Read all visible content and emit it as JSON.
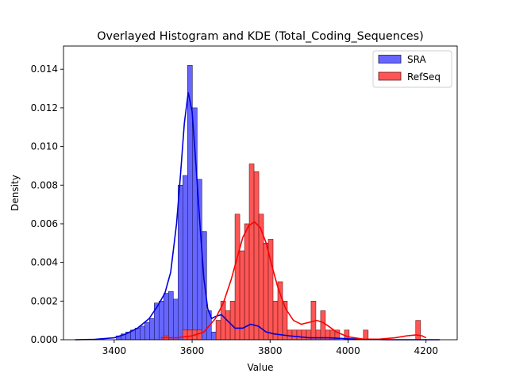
{
  "chart_data": {
    "type": "histogram",
    "title": "Overlayed Histogram and KDE (Total_Coding_Sequences)",
    "xlabel": "Value",
    "ylabel": "Density",
    "xlim": [
      3270,
      4280
    ],
    "ylim": [
      0,
      0.0152
    ],
    "xticks": [
      3400,
      3600,
      3800,
      4000,
      4200
    ],
    "yticks": [
      0.0,
      0.002,
      0.004,
      0.006,
      0.008,
      0.01,
      0.012,
      0.014
    ],
    "ytick_labels": [
      "0.000",
      "0.002",
      "0.004",
      "0.006",
      "0.008",
      "0.010",
      "0.012",
      "0.014"
    ],
    "legend": {
      "position": "top-right"
    },
    "series": [
      {
        "name": "SRA",
        "fill": "#6666ff",
        "edge": "#1a1a66",
        "line": "#0000dd",
        "bin_width": 12.2,
        "bins": [
          [
            3405.3,
            0.0002
          ],
          [
            3417.5,
            0.0003
          ],
          [
            3429.7,
            0.0004
          ],
          [
            3441.9,
            0.0005
          ],
          [
            3454.1,
            0.0006
          ],
          [
            3466.3,
            0.0007
          ],
          [
            3478.5,
            0.0009
          ],
          [
            3490.7,
            0.0011
          ],
          [
            3502.9,
            0.0019
          ],
          [
            3515.1,
            0.002
          ],
          [
            3527.3,
            0.0024
          ],
          [
            3539.5,
            0.0025
          ],
          [
            3551.7,
            0.0021
          ],
          [
            3563.9,
            0.008
          ],
          [
            3576.1,
            0.0085
          ],
          [
            3588.3,
            0.0142
          ],
          [
            3600.5,
            0.012
          ],
          [
            3612.7,
            0.0083
          ],
          [
            3624.9,
            0.0056
          ],
          [
            3637.1,
            0.0015
          ],
          [
            3649.3,
            0.0004
          ],
          [
            3661.5,
            0.001
          ],
          [
            3673.7,
            0.0006
          ],
          [
            3685.9,
            0.0005
          ],
          [
            3698.1,
            0.0004
          ],
          [
            3710.3,
            0.0004
          ],
          [
            3722.5,
            0.0005
          ],
          [
            3734.7,
            0.0005
          ],
          [
            3746.9,
            0.0006
          ],
          [
            3759.1,
            0.0006
          ],
          [
            3771.3,
            0.0005
          ],
          [
            3783.5,
            0.0005
          ],
          [
            3795.7,
            0.0004
          ],
          [
            3807.9,
            0.0003
          ],
          [
            3820.1,
            0.0003
          ],
          [
            3832.3,
            0.0002
          ],
          [
            3844.5,
            0.0002
          ],
          [
            3856.7,
            0.0001
          ],
          [
            3868.9,
            0.0001
          ],
          [
            3881.1,
            0.0001
          ]
        ],
        "kde_x": [
          3300,
          3350,
          3400,
          3430,
          3460,
          3490,
          3510,
          3530,
          3545,
          3560,
          3570,
          3580,
          3590,
          3600,
          3610,
          3620,
          3630,
          3640,
          3650,
          3660,
          3675,
          3690,
          3710,
          3730,
          3750,
          3770,
          3790,
          3810,
          3850,
          3900,
          3950,
          4000,
          4100,
          4235
        ],
        "kde_y": [
          0.0,
          2e-05,
          0.0001,
          0.0003,
          0.0006,
          0.0011,
          0.0017,
          0.0024,
          0.0035,
          0.006,
          0.0085,
          0.0112,
          0.0128,
          0.0118,
          0.009,
          0.006,
          0.0032,
          0.0016,
          0.0011,
          0.0012,
          0.0013,
          0.001,
          0.0006,
          0.0006,
          0.0008,
          0.0007,
          0.0004,
          0.0003,
          0.0002,
          0.0001,
          0.0001,
          5e-05,
          0.0,
          0.0
        ]
      },
      {
        "name": "RefSeq",
        "fill": "#ff5555",
        "edge": "#661a1a",
        "line": "#ff0000",
        "bin_width": 12.2,
        "bins": [
          [
            3527.3,
            0.0002
          ],
          [
            3575.8,
            0.0005
          ],
          [
            3588.0,
            0.0005
          ],
          [
            3600.2,
            0.0005
          ],
          [
            3612.4,
            0.0005
          ],
          [
            3661.2,
            0.001
          ],
          [
            3673.4,
            0.002
          ],
          [
            3685.6,
            0.0015
          ],
          [
            3697.8,
            0.002
          ],
          [
            3710.0,
            0.0065
          ],
          [
            3722.2,
            0.0046
          ],
          [
            3734.4,
            0.006
          ],
          [
            3746.6,
            0.0091
          ],
          [
            3758.8,
            0.0087
          ],
          [
            3771.0,
            0.0065
          ],
          [
            3783.2,
            0.005
          ],
          [
            3795.4,
            0.0052
          ],
          [
            3807.6,
            0.002
          ],
          [
            3819.8,
            0.003
          ],
          [
            3832.0,
            0.002
          ],
          [
            3844.2,
            0.0005
          ],
          [
            3856.4,
            0.0005
          ],
          [
            3868.6,
            0.0005
          ],
          [
            3880.8,
            0.0005
          ],
          [
            3893.0,
            0.0005
          ],
          [
            3905.2,
            0.002
          ],
          [
            3917.4,
            0.0005
          ],
          [
            3929.6,
            0.0015
          ],
          [
            3941.8,
            0.0005
          ],
          [
            3954.0,
            0.0005
          ],
          [
            3966.2,
            0.0005
          ],
          [
            3990.6,
            0.0005
          ],
          [
            4039.4,
            0.0005
          ],
          [
            4173.6,
            0.001
          ]
        ],
        "kde_x": [
          3520,
          3560,
          3600,
          3630,
          3660,
          3680,
          3700,
          3715,
          3730,
          3745,
          3760,
          3775,
          3790,
          3805,
          3820,
          3840,
          3860,
          3880,
          3900,
          3920,
          3935,
          3950,
          3970,
          4000,
          4040,
          4080,
          4120,
          4150,
          4175,
          4190,
          4200
        ],
        "kde_y": [
          0.0001,
          0.0001,
          0.0002,
          0.0004,
          0.0011,
          0.0019,
          0.0031,
          0.0042,
          0.0053,
          0.0059,
          0.0061,
          0.0058,
          0.005,
          0.0038,
          0.0027,
          0.0016,
          0.001,
          0.0008,
          0.0009,
          0.001,
          0.0009,
          0.0007,
          0.0004,
          0.00015,
          3e-05,
          3e-05,
          0.0001,
          0.0002,
          0.00025,
          0.0002,
          0.0001
        ]
      }
    ]
  }
}
